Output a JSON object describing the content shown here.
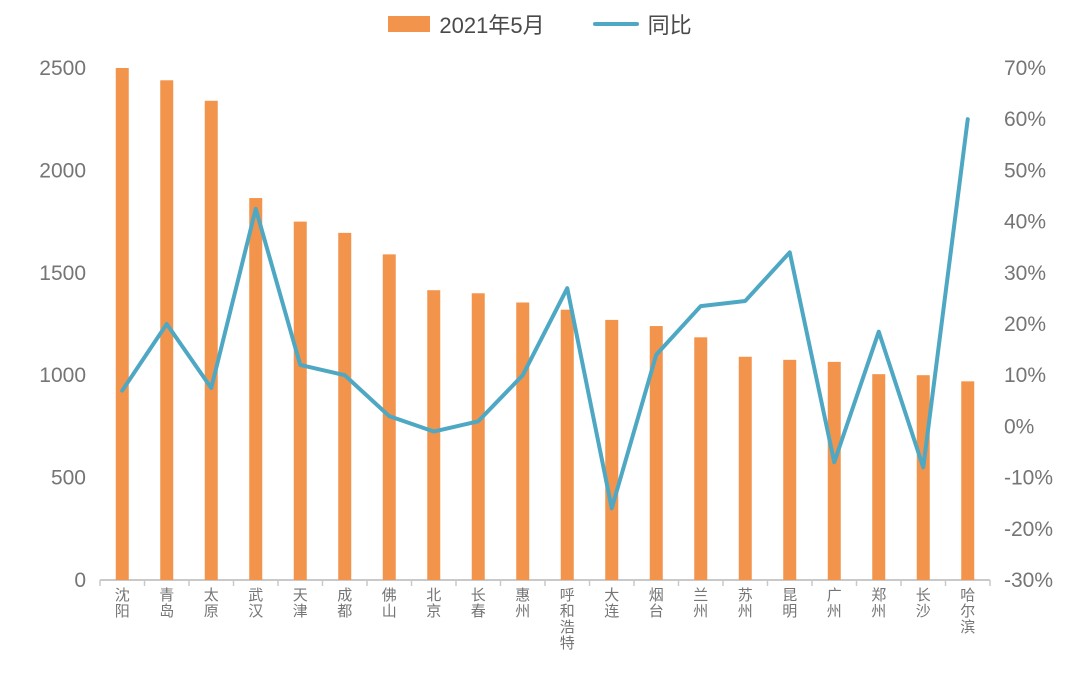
{
  "colors": {
    "background": "#ffffff",
    "bar": "#F2944C",
    "line": "#4EA8C3",
    "axis_text": "#757575",
    "legend_text": "#4a4a4a",
    "axis_line": "#c9c9c9"
  },
  "chart_data": {
    "type": "bar",
    "subtype": "bar-and-line-dual-axis",
    "title": "",
    "legend_position": "top-center",
    "grid": false,
    "categories": [
      "沈阳",
      "青岛",
      "太原",
      "武汉",
      "天津",
      "成都",
      "佛山",
      "北京",
      "长春",
      "惠州",
      "呼和浩特",
      "大连",
      "烟台",
      "兰州",
      "苏州",
      "昆明",
      "广州",
      "郑州",
      "长沙",
      "哈尔滨"
    ],
    "series": [
      {
        "name": "2021年5月",
        "type": "bar",
        "axis": "left",
        "color": "#F2944C",
        "values": [
          2500,
          2440,
          2340,
          1865,
          1750,
          1695,
          1590,
          1415,
          1400,
          1355,
          1320,
          1270,
          1240,
          1185,
          1090,
          1075,
          1065,
          1005,
          1000,
          970
        ]
      },
      {
        "name": "同比",
        "type": "line",
        "axis": "right",
        "color": "#4EA8C3",
        "values": [
          7,
          20,
          7.5,
          42.5,
          12,
          10,
          2,
          -1,
          1,
          10,
          27,
          -16,
          14,
          23.5,
          24.5,
          34,
          -7,
          18.5,
          -8,
          60
        ]
      }
    ],
    "left_axis": {
      "min": 0,
      "max": 2500,
      "tick_step": 500,
      "tick_labels": [
        "0",
        "500",
        "1000",
        "1500",
        "2000",
        "2500"
      ]
    },
    "right_axis": {
      "min": -30,
      "max": 70,
      "tick_step": 10,
      "tick_format": "percent",
      "tick_labels": [
        "-30%",
        "-20%",
        "-10%",
        "0%",
        "10%",
        "20%",
        "30%",
        "40%",
        "50%",
        "60%",
        "70%"
      ]
    }
  }
}
